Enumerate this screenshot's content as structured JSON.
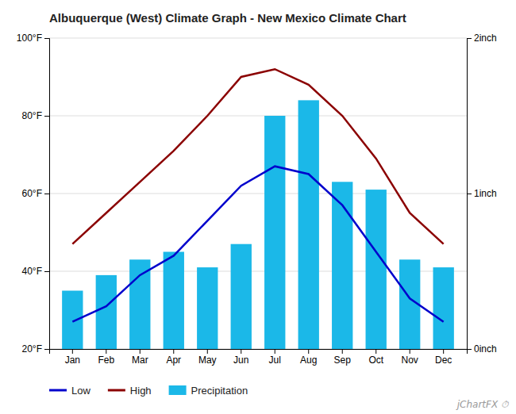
{
  "chart_data": {
    "type": "bar",
    "title": "Albuquerque (West) Climate Graph - New Mexico Climate Chart",
    "categories": [
      "Jan",
      "Feb",
      "Mar",
      "Apr",
      "May",
      "Jun",
      "Jul",
      "Aug",
      "Sep",
      "Oct",
      "Nov",
      "Dec"
    ],
    "series": [
      {
        "name": "Low",
        "type": "line",
        "color": "#0000CC",
        "values": [
          27,
          31,
          39,
          44,
          53,
          62,
          67,
          65,
          57,
          45,
          33,
          27
        ]
      },
      {
        "name": "High",
        "type": "line",
        "color": "#8B0000",
        "values": [
          47,
          55,
          63,
          71,
          80,
          90,
          92,
          88,
          80,
          69,
          55,
          47
        ]
      },
      {
        "name": "Precipitation",
        "type": "bar",
        "color": "#1BB8E8",
        "values": [
          35,
          39,
          43,
          45,
          41,
          47,
          80,
          84,
          63,
          61,
          43,
          41
        ]
      }
    ],
    "ylim": [
      20,
      100
    ],
    "yticks": [
      {
        "value": 20,
        "label": "20°F"
      },
      {
        "value": 40,
        "label": "40°F"
      },
      {
        "value": 60,
        "label": "60°F"
      },
      {
        "value": 80,
        "label": "80°F"
      },
      {
        "value": 100,
        "label": "100°F"
      }
    ],
    "y2lim": [
      20,
      100
    ],
    "y2ticks": [
      {
        "value": 20,
        "label": "0inch"
      },
      {
        "value": 60,
        "label": "1inch"
      },
      {
        "value": 100,
        "label": "2inch"
      }
    ],
    "grid": true,
    "legend": "bottom",
    "annotations": [
      "jChartFX ⏱"
    ]
  }
}
